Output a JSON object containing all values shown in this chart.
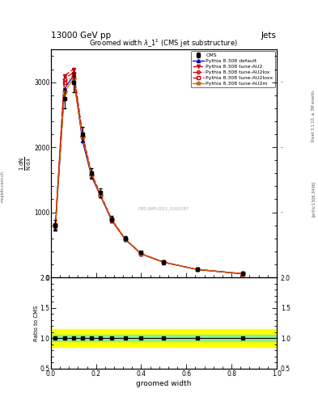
{
  "title": "13000 GeV pp",
  "jets_label": "Jets",
  "plot_title": "Groomed width $\\lambda\\_1^1$ (CMS jet substructure)",
  "xlabel": "groomed width",
  "ylabel_ratio": "Ratio to CMS",
  "right_label_top": "Rivet 3.1.10, ≥ 3M events",
  "right_label_bot": "[arXiv:1306.3436]",
  "left_label": "mcplots.cern.ch",
  "watermark": "CMS-SMP-2021_I1920187",
  "xlim": [
    0,
    1.0
  ],
  "ylim_main": [
    0,
    3500
  ],
  "ylim_ratio": [
    0.5,
    2.0
  ],
  "x_data": [
    0.02,
    0.06,
    0.1,
    0.14,
    0.18,
    0.22,
    0.27,
    0.33,
    0.4,
    0.5,
    0.65,
    0.85
  ],
  "cms_y": [
    800,
    2750,
    3000,
    2200,
    1600,
    1300,
    900,
    600,
    380,
    240,
    130,
    60
  ],
  "default_y": [
    750,
    2900,
    3100,
    2100,
    1550,
    1250,
    870,
    580,
    360,
    230,
    120,
    55
  ],
  "au2_y": [
    800,
    3100,
    3200,
    2200,
    1600,
    1280,
    890,
    590,
    365,
    235,
    122,
    57
  ],
  "au2lox_y": [
    820,
    3050,
    3150,
    2180,
    1580,
    1260,
    880,
    585,
    363,
    232,
    121,
    56
  ],
  "au2loxx_y": [
    810,
    3000,
    3100,
    2160,
    1570,
    1250,
    875,
    582,
    361,
    231,
    120,
    56
  ],
  "au2m_y": [
    780,
    2850,
    3050,
    2150,
    1570,
    1260,
    880,
    585,
    362,
    232,
    121,
    57
  ],
  "cms_err": [
    80,
    150,
    150,
    110,
    80,
    65,
    45,
    30,
    20,
    15,
    10,
    6
  ],
  "ratio_green_hi": 1.05,
  "ratio_green_lo": 0.95,
  "ratio_yellow_hi": 1.15,
  "ratio_yellow_lo": 0.85,
  "color_default": "#0000cc",
  "color_au2": "#cc0000",
  "color_au2lox": "#cc0000",
  "color_au2loxx": "#cc0000",
  "color_au2m": "#cc6600",
  "color_cms": "#000000",
  "bg_color": "#ffffff"
}
